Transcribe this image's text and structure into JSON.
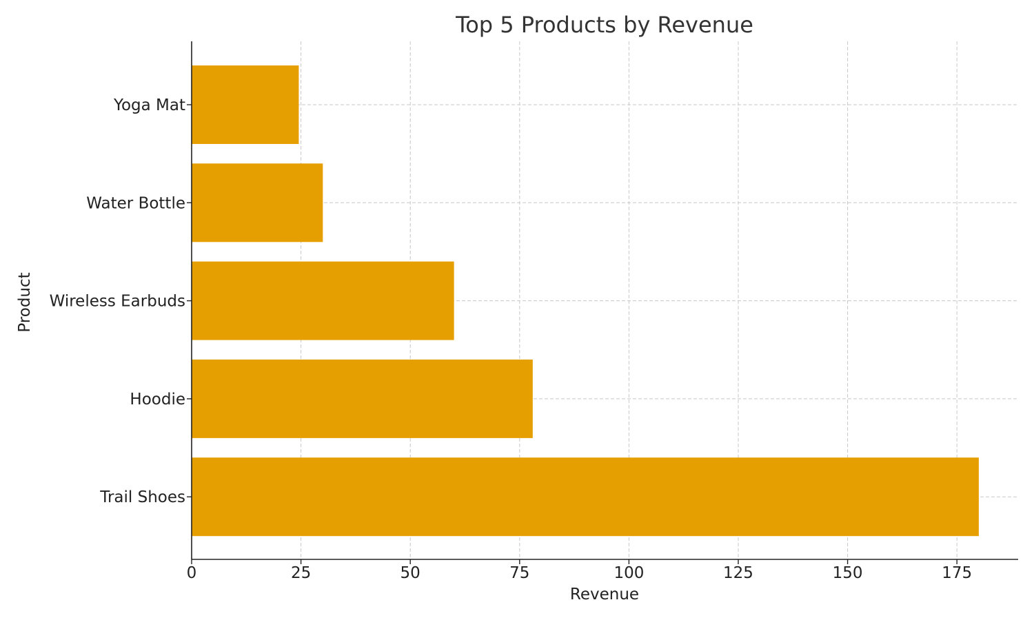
{
  "chart_data": {
    "type": "bar",
    "orientation": "horizontal",
    "title": "Top 5 Products by Revenue",
    "xlabel": "Revenue",
    "ylabel": "Product",
    "categories": [
      "Trail Shoes",
      "Hoodie",
      "Wireless Earbuds",
      "Water Bottle",
      "Yoga Mat"
    ],
    "values": [
      180,
      78,
      60,
      30,
      24.5
    ],
    "xlim": [
      0,
      189
    ],
    "xticks": [
      0,
      25,
      50,
      75,
      100,
      125,
      150,
      175
    ],
    "grid": true,
    "bar_color": "#e69f00"
  }
}
